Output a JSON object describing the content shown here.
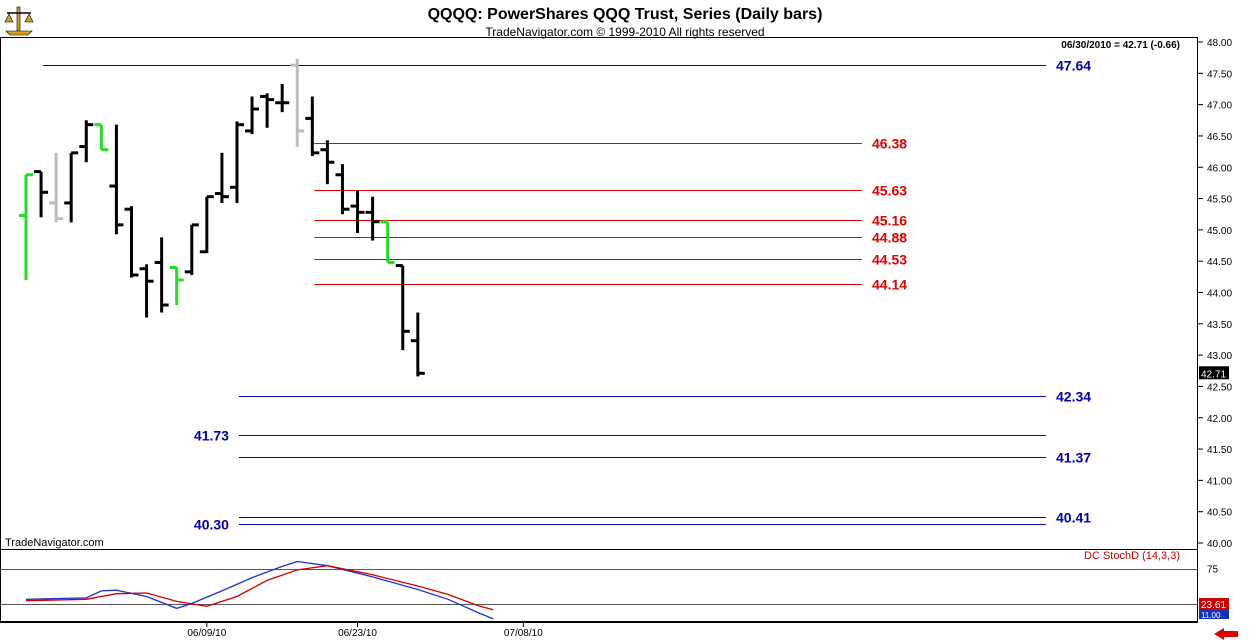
{
  "header": {
    "title": "QQQQ:  PowerShares QQQ Trust, Series  (Daily bars)",
    "subtitle": "TradeNavigator.com © 1999-2010 All rights reserved",
    "quote": "06/30/2010 = 42.71 (-0.66)",
    "watermark": "TradeNavigator.com",
    "logo_icon": "scales-logo-icon"
  },
  "colors": {
    "up_bar": "#000000",
    "neutral_bar": "#bdbdbd",
    "green_bar": "#22dd22",
    "support_line": "#0000b0",
    "resistance_line": "#e00000",
    "stoch_k": "#2030d0",
    "stoch_d": "#d00000",
    "grid": "#000000"
  },
  "chart_data": [
    {
      "type": "ohlc",
      "name": "price",
      "ylim": [
        40.0,
        48.0
      ],
      "y_ticks": [
        "40.00",
        "40.50",
        "41.00",
        "41.50",
        "42.00",
        "42.50",
        "43.00",
        "43.50",
        "44.00",
        "44.50",
        "45.00",
        "45.50",
        "46.00",
        "46.50",
        "47.00",
        "47.50",
        "48.00"
      ],
      "x_ticks": [
        {
          "label": "06/09/10",
          "bar": 12
        },
        {
          "label": "06/23/10",
          "bar": 22
        },
        {
          "label": "07/08/10",
          "bar": 33
        }
      ],
      "last_price_label": "42.71",
      "bars": [
        {
          "o": 45.23,
          "h": 45.88,
          "l": 44.2,
          "c": 45.88,
          "color": "green"
        },
        {
          "o": 45.93,
          "h": 45.93,
          "l": 45.2,
          "c": 45.6,
          "color": "black"
        },
        {
          "o": 45.43,
          "h": 46.23,
          "l": 45.12,
          "c": 45.18,
          "color": "gray"
        },
        {
          "o": 45.43,
          "h": 46.23,
          "l": 45.12,
          "c": 46.23,
          "color": "black"
        },
        {
          "o": 46.33,
          "h": 46.75,
          "l": 46.08,
          "c": 46.68,
          "color": "black"
        },
        {
          "o": 46.68,
          "h": 46.68,
          "l": 46.28,
          "c": 46.28,
          "color": "green"
        },
        {
          "o": 45.7,
          "h": 46.68,
          "l": 44.93,
          "c": 45.08,
          "color": "black"
        },
        {
          "o": 45.33,
          "h": 45.38,
          "l": 44.24,
          "c": 44.28,
          "color": "black"
        },
        {
          "o": 44.38,
          "h": 44.45,
          "l": 43.6,
          "c": 44.18,
          "color": "black"
        },
        {
          "o": 44.48,
          "h": 44.88,
          "l": 43.68,
          "c": 43.8,
          "color": "black"
        },
        {
          "o": 44.4,
          "h": 44.4,
          "l": 43.8,
          "c": 44.2,
          "color": "green"
        },
        {
          "o": 44.33,
          "h": 45.08,
          "l": 44.28,
          "c": 45.08,
          "color": "black"
        },
        {
          "o": 44.65,
          "h": 45.53,
          "l": 44.63,
          "c": 45.53,
          "color": "black"
        },
        {
          "o": 45.58,
          "h": 46.23,
          "l": 45.43,
          "c": 45.53,
          "color": "black"
        },
        {
          "o": 45.68,
          "h": 46.73,
          "l": 45.43,
          "c": 46.68,
          "color": "black"
        },
        {
          "o": 46.58,
          "h": 47.13,
          "l": 46.53,
          "c": 46.93,
          "color": "black"
        },
        {
          "o": 47.13,
          "h": 47.18,
          "l": 46.63,
          "c": 47.08,
          "color": "black"
        },
        {
          "o": 47.03,
          "h": 47.33,
          "l": 46.88,
          "c": 47.03,
          "color": "black"
        },
        {
          "o": 47.63,
          "h": 47.73,
          "l": 46.33,
          "c": 46.58,
          "color": "gray"
        },
        {
          "o": 46.78,
          "h": 47.13,
          "l": 46.18,
          "c": 46.23,
          "color": "black"
        },
        {
          "o": 46.28,
          "h": 46.43,
          "l": 45.73,
          "c": 46.08,
          "color": "black"
        },
        {
          "o": 45.88,
          "h": 46.05,
          "l": 45.25,
          "c": 45.33,
          "color": "black"
        },
        {
          "o": 45.38,
          "h": 45.63,
          "l": 44.95,
          "c": 45.28,
          "color": "black"
        },
        {
          "o": 45.28,
          "h": 45.53,
          "l": 44.83,
          "c": 45.13,
          "color": "black"
        },
        {
          "o": 45.13,
          "h": 45.13,
          "l": 44.48,
          "c": 44.48,
          "color": "green"
        },
        {
          "o": 44.43,
          "h": 44.43,
          "l": 43.08,
          "c": 43.38,
          "color": "black"
        },
        {
          "o": 43.23,
          "h": 43.68,
          "l": 42.66,
          "c": 42.71,
          "color": "black"
        }
      ],
      "levels": [
        {
          "value": "47.64",
          "role": "support",
          "start_bar": 1,
          "label_side": "right"
        },
        {
          "value": "46.38",
          "role": "resistance",
          "start_bar": 19,
          "label_side": "right"
        },
        {
          "value": "45.63",
          "role": "resistance",
          "start_bar": 19,
          "label_side": "right"
        },
        {
          "value": "45.16",
          "role": "resistance",
          "start_bar": 19,
          "label_side": "right"
        },
        {
          "value": "44.88",
          "role": "resistance",
          "start_bar": 19,
          "label_side": "right"
        },
        {
          "value": "44.53",
          "role": "resistance",
          "start_bar": 19,
          "label_side": "right"
        },
        {
          "value": "44.14",
          "role": "resistance",
          "start_bar": 19,
          "label_side": "right"
        },
        {
          "value": "42.34",
          "role": "support",
          "start_bar": 14,
          "label_side": "right"
        },
        {
          "value": "41.73",
          "role": "support",
          "start_bar": 14,
          "label_side": "left"
        },
        {
          "value": "41.37",
          "role": "support",
          "start_bar": 14,
          "label_side": "right"
        },
        {
          "value": "40.41",
          "role": "support",
          "start_bar": 14,
          "label_side": "right"
        },
        {
          "value": "40.30",
          "role": "support",
          "start_bar": 14,
          "label_side": "left"
        }
      ]
    },
    {
      "type": "line",
      "name": "DC StochD (14,3,3)",
      "ylim": [
        0,
        100
      ],
      "y_ticks": [
        "75"
      ],
      "guide_levels": [
        75,
        25
      ],
      "last_value_label": "23.61",
      "lower_label": "11.00",
      "series": [
        {
          "key": "k",
          "values": [
            {
              "x": 0,
              "y": 31
            },
            {
              "x": 4,
              "y": 33
            },
            {
              "x": 5,
              "y": 43
            },
            {
              "x": 6,
              "y": 44
            },
            {
              "x": 8,
              "y": 35
            },
            {
              "x": 10,
              "y": 18
            },
            {
              "x": 11,
              "y": 25
            },
            {
              "x": 13,
              "y": 43
            },
            {
              "x": 15,
              "y": 62
            },
            {
              "x": 17,
              "y": 78
            },
            {
              "x": 18,
              "y": 85
            },
            {
              "x": 20,
              "y": 79
            },
            {
              "x": 23,
              "y": 63
            },
            {
              "x": 26,
              "y": 45
            },
            {
              "x": 28,
              "y": 31
            },
            {
              "x": 30,
              "y": 12
            },
            {
              "x": 31,
              "y": 3
            }
          ]
        },
        {
          "key": "d",
          "values": [
            {
              "x": 0,
              "y": 29
            },
            {
              "x": 4,
              "y": 31
            },
            {
              "x": 6,
              "y": 39
            },
            {
              "x": 8,
              "y": 40
            },
            {
              "x": 10,
              "y": 28
            },
            {
              "x": 12,
              "y": 21
            },
            {
              "x": 14,
              "y": 35
            },
            {
              "x": 16,
              "y": 58
            },
            {
              "x": 18,
              "y": 73
            },
            {
              "x": 20,
              "y": 79
            },
            {
              "x": 23,
              "y": 66
            },
            {
              "x": 26,
              "y": 50
            },
            {
              "x": 28,
              "y": 38
            },
            {
              "x": 30,
              "y": 22
            },
            {
              "x": 31,
              "y": 16
            }
          ]
        }
      ]
    }
  ]
}
